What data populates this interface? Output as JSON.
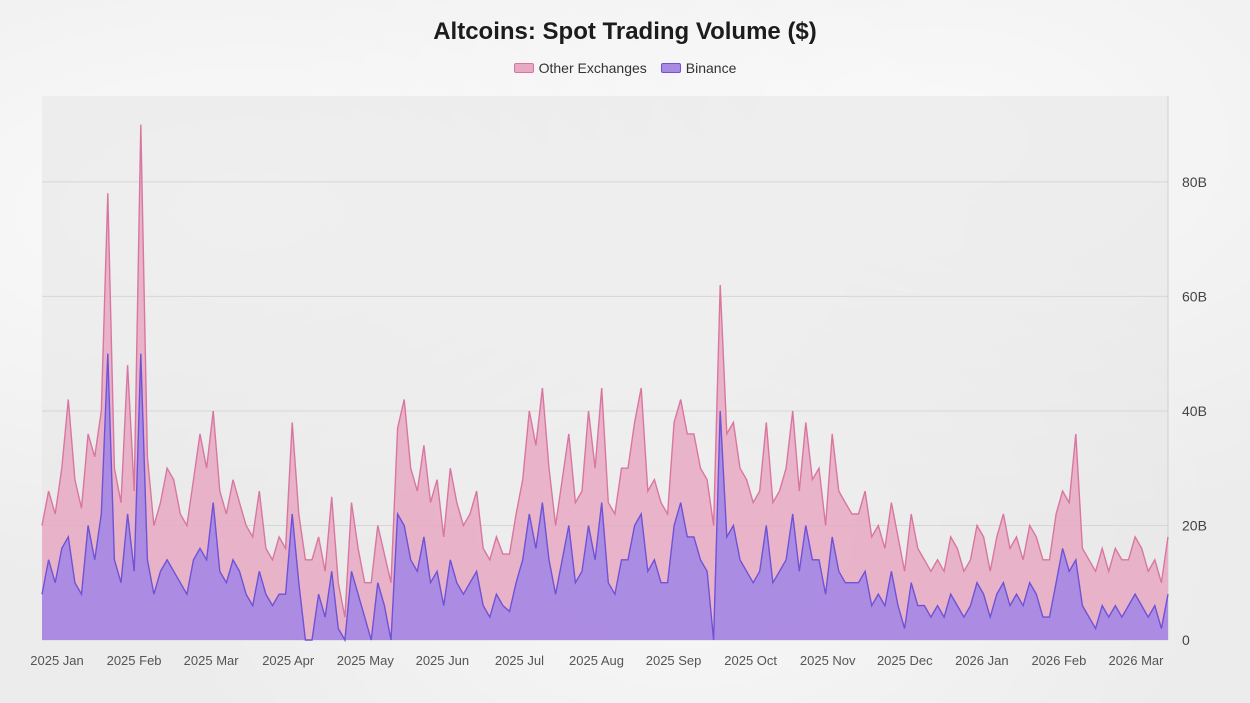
{
  "chart_data": {
    "type": "area",
    "title": "Altcoins: Spot Trading Volume ($)",
    "xlabel": "",
    "ylabel": "",
    "ylim": [
      0,
      95
    ],
    "y_unit": "B",
    "y_ticks": [
      {
        "value": 0,
        "label": "0"
      },
      {
        "value": 20,
        "label": "20B"
      },
      {
        "value": 40,
        "label": "40B"
      },
      {
        "value": 60,
        "label": "60B"
      },
      {
        "value": 80,
        "label": "80B"
      }
    ],
    "x_ticks": [
      "2025 Jan",
      "2025 Feb",
      "2025 Mar",
      "2025 Apr",
      "2025 May",
      "2025 Jun",
      "2025 Jul",
      "2025 Aug",
      "2025 Sep",
      "2025 Oct",
      "2025 Nov",
      "2025 Dec",
      "2026 Jan",
      "2026 Feb",
      "2026 Mar"
    ],
    "grid": true,
    "stacked": true,
    "legend_position": "top-center",
    "series": [
      {
        "name": "Other Exchanges",
        "color": "#d9769f",
        "fill": "#e7a9c3",
        "total_values": [
          20,
          26,
          22,
          30,
          42,
          28,
          23,
          36,
          32,
          40,
          78,
          30,
          24,
          48,
          26,
          90,
          32,
          20,
          24,
          30,
          28,
          22,
          20,
          28,
          36,
          30,
          40,
          26,
          22,
          28,
          24,
          20,
          18,
          26,
          16,
          14,
          18,
          16,
          38,
          22,
          14,
          14,
          18,
          12,
          25,
          10,
          4,
          24,
          16,
          10,
          10,
          20,
          15,
          10,
          37,
          42,
          30,
          26,
          34,
          24,
          28,
          18,
          30,
          24,
          20,
          22,
          26,
          16,
          14,
          18,
          15,
          15,
          22,
          28,
          40,
          34,
          44,
          30,
          20,
          28,
          36,
          24,
          26,
          40,
          30,
          44,
          24,
          22,
          30,
          30,
          38,
          44,
          26,
          28,
          24,
          22,
          38,
          42,
          36,
          36,
          30,
          28,
          20,
          62,
          36,
          38,
          30,
          28,
          24,
          26,
          38,
          24,
          26,
          30,
          40,
          26,
          38,
          28,
          30,
          20,
          36,
          26,
          24,
          22,
          22,
          26,
          18,
          20,
          16,
          24,
          18,
          12,
          22,
          16,
          14,
          12,
          14,
          12,
          18,
          16,
          12,
          14,
          20,
          18,
          12,
          18,
          22,
          16,
          18,
          14,
          20,
          18,
          14,
          14,
          22,
          26,
          24,
          36,
          16,
          14,
          12,
          16,
          12,
          16,
          14,
          14,
          18,
          16,
          12,
          14,
          10,
          18
        ]
      },
      {
        "name": "Binance",
        "color": "#6f52d6",
        "fill": "#a88ae4",
        "values": [
          8,
          14,
          10,
          16,
          18,
          10,
          8,
          20,
          14,
          22,
          50,
          14,
          10,
          22,
          12,
          50,
          14,
          8,
          12,
          14,
          12,
          10,
          8,
          14,
          16,
          14,
          24,
          12,
          10,
          14,
          12,
          8,
          6,
          12,
          8,
          6,
          8,
          8,
          22,
          10,
          0,
          0,
          8,
          4,
          12,
          2,
          0,
          12,
          8,
          4,
          0,
          10,
          6,
          0,
          22,
          20,
          14,
          12,
          18,
          10,
          12,
          6,
          14,
          10,
          8,
          10,
          12,
          6,
          4,
          8,
          6,
          5,
          10,
          14,
          22,
          16,
          24,
          14,
          8,
          14,
          20,
          10,
          12,
          20,
          14,
          24,
          10,
          8,
          14,
          14,
          20,
          22,
          12,
          14,
          10,
          10,
          20,
          24,
          18,
          18,
          14,
          12,
          0,
          40,
          18,
          20,
          14,
          12,
          10,
          12,
          20,
          10,
          12,
          14,
          22,
          12,
          20,
          14,
          14,
          8,
          18,
          12,
          10,
          10,
          10,
          12,
          6,
          8,
          6,
          12,
          6,
          2,
          10,
          6,
          6,
          4,
          6,
          4,
          8,
          6,
          4,
          6,
          10,
          8,
          4,
          8,
          10,
          6,
          8,
          6,
          10,
          8,
          4,
          4,
          10,
          16,
          12,
          14,
          6,
          4,
          2,
          6,
          4,
          6,
          4,
          6,
          8,
          6,
          4,
          6,
          2,
          8
        ]
      }
    ]
  }
}
